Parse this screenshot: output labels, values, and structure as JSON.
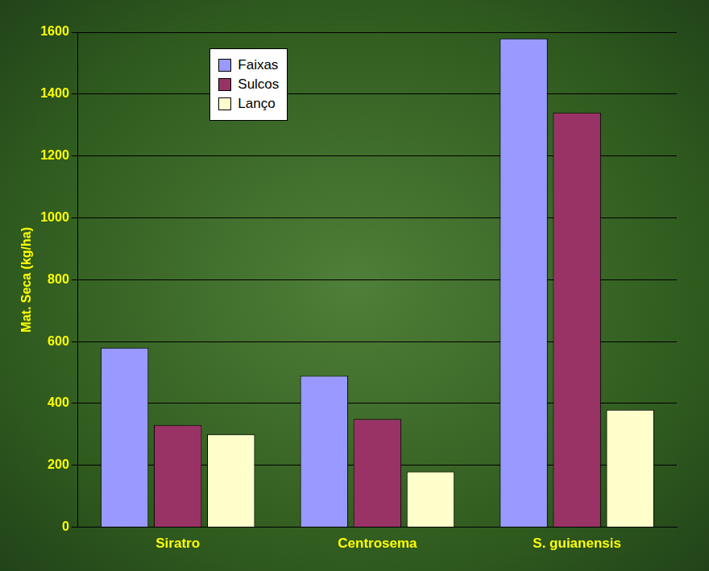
{
  "chart_data": {
    "type": "bar",
    "y_label": "Mat. Seca (kg/ha)",
    "categories": [
      "Siratro",
      "Centrosema",
      "S. guianensis"
    ],
    "series": [
      {
        "name": "Faixas",
        "color": "#9999ff",
        "values": [
          580,
          490,
          1580
        ]
      },
      {
        "name": "Sulcos",
        "color": "#993366",
        "values": [
          330,
          350,
          1340
        ]
      },
      {
        "name": "Lanço",
        "color": "#ffffcc",
        "values": [
          300,
          180,
          380
        ]
      }
    ],
    "ylim": [
      0,
      1600
    ],
    "yticks": [
      0,
      200,
      400,
      600,
      800,
      1000,
      1200,
      1400,
      1600
    ],
    "grid": true,
    "legend": "upper left"
  }
}
